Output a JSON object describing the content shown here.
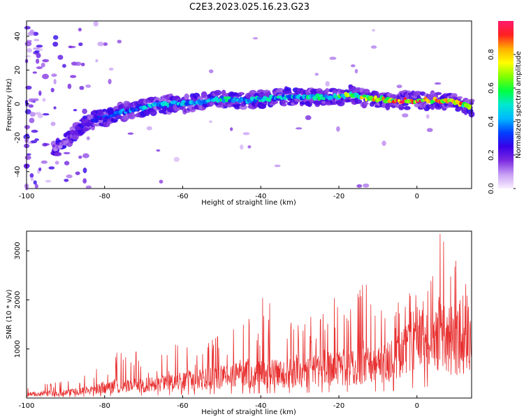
{
  "title": "C2E3.2023.025.16.23.G23",
  "chart_data": [
    {
      "type": "heatmap",
      "xlabel": "Height of straight line (km)",
      "ylabel": "Frequency (Hz)",
      "xlim": [
        -100,
        14
      ],
      "ylim": [
        -50,
        49
      ],
      "x_ticks": [
        -100,
        -80,
        -60,
        -40,
        -20,
        0
      ],
      "y_ticks": [
        -40,
        -20,
        0,
        20,
        40
      ],
      "colorbar": {
        "label": "Normalized spectral amplitude",
        "range": [
          0,
          1
        ],
        "ticks": [
          0.0,
          0.2,
          0.4,
          0.6,
          0.8
        ],
        "colormap": [
          "#f8f0ff",
          "#c9a0f5",
          "#7b2be0",
          "#3a00e8",
          "#0040ff",
          "#00b8ff",
          "#00e8d0",
          "#00ff40",
          "#7fff00",
          "#ffff00",
          "#ffb000",
          "#ff2020",
          "#ff1a6e"
        ]
      },
      "ridge": {
        "x": [
          -92,
          -90,
          -88,
          -86,
          -84,
          -82,
          -80,
          -78,
          -76,
          -74,
          -72,
          -70,
          -65,
          -60,
          -55,
          -50,
          -45,
          -40,
          -35,
          -30,
          -25,
          -20,
          -17,
          -15,
          -10,
          -5,
          0,
          5,
          10,
          14
        ],
        "freq": [
          -26,
          -22,
          -17,
          -13,
          -11,
          -9,
          -8,
          -6,
          -5,
          -4,
          -3,
          -2,
          0,
          0,
          1,
          3,
          2,
          3,
          4,
          4,
          4,
          4,
          6,
          4,
          3,
          2,
          2,
          2,
          1,
          -2
        ],
        "amp": [
          0.15,
          0.18,
          0.22,
          0.25,
          0.28,
          0.3,
          0.32,
          0.35,
          0.38,
          0.4,
          0.42,
          0.45,
          0.48,
          0.5,
          0.5,
          0.52,
          0.5,
          0.5,
          0.5,
          0.5,
          0.55,
          0.6,
          0.7,
          0.75,
          0.85,
          0.9,
          0.9,
          0.9,
          0.85,
          0.8
        ]
      }
    },
    {
      "type": "line",
      "xlabel": "Height of straight line (km)",
      "ylabel": "SNR (10 * v/v)",
      "xlim": [
        -100,
        14
      ],
      "ylim": [
        0,
        3400
      ],
      "x_ticks": [
        -100,
        -80,
        -60,
        -40,
        -20,
        0
      ],
      "y_ticks": [
        1000,
        2000,
        3000
      ],
      "color": "#e83030",
      "envelope": {
        "x": [
          -100,
          -95,
          -90,
          -86,
          -82,
          -78,
          -74,
          -70,
          -66,
          -62,
          -58,
          -54,
          -50,
          -46,
          -42,
          -38,
          -34,
          -30,
          -26,
          -22,
          -18,
          -14,
          -10,
          -6,
          -2,
          2,
          6,
          10,
          14
        ],
        "base": [
          100,
          110,
          140,
          180,
          240,
          300,
          330,
          350,
          380,
          420,
          460,
          500,
          560,
          600,
          620,
          650,
          680,
          700,
          740,
          800,
          850,
          880,
          900,
          1000,
          1300,
          1500,
          1700,
          1500,
          1700
        ],
        "peak": [
          260,
          300,
          350,
          420,
          700,
          1100,
          950,
          1000,
          950,
          1100,
          1050,
          1100,
          1450,
          1500,
          1800,
          2200,
          1600,
          1650,
          1800,
          2150,
          1700,
          2550,
          2100,
          1850,
          2300,
          2000,
          3400,
          2850,
          2400
        ]
      }
    }
  ]
}
